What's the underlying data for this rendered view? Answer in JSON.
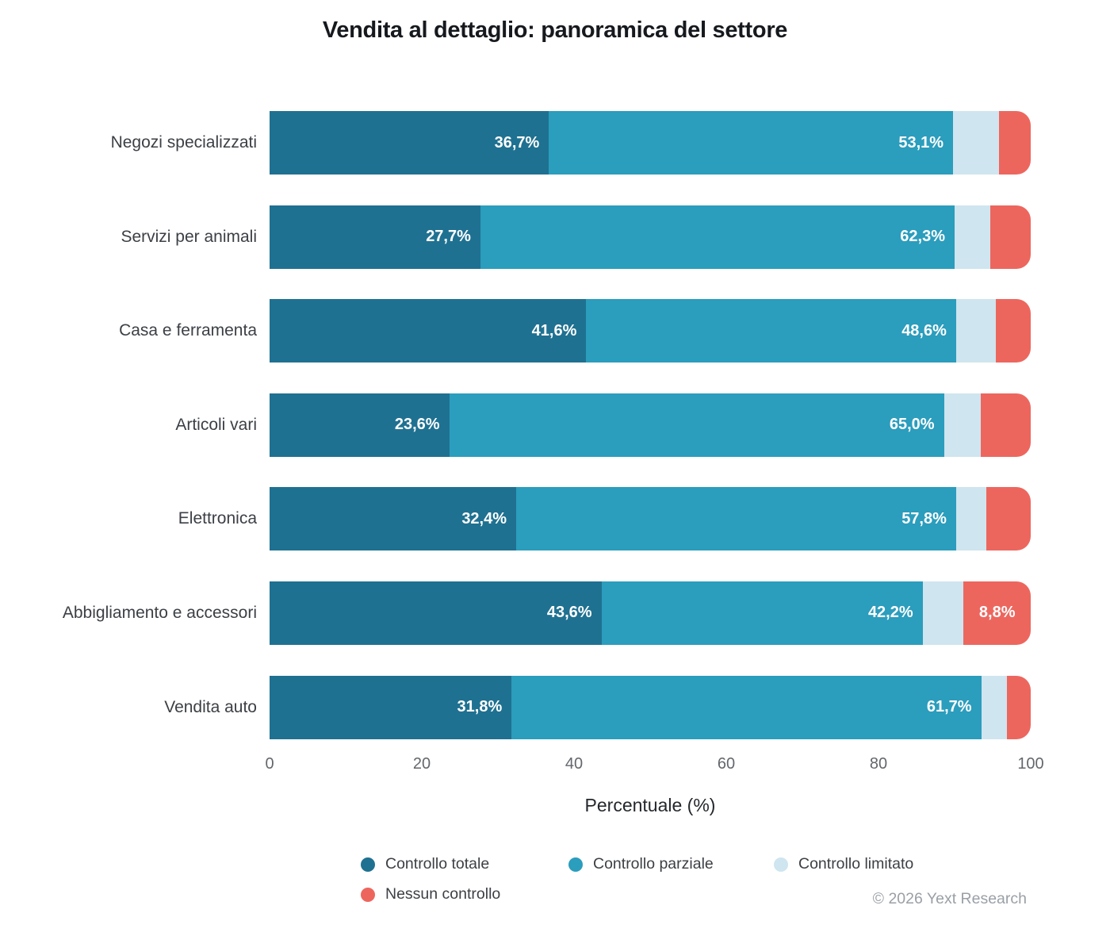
{
  "chart_data": {
    "type": "bar",
    "stacked": true,
    "orientation": "horizontal",
    "title": "Vendita al dettaglio: panoramica del settore",
    "xlabel": "Percentuale (%)",
    "xlim": [
      0,
      100
    ],
    "xticks": [
      "0",
      "20",
      "40",
      "60",
      "80",
      "100"
    ],
    "grid": false,
    "legend_position": "bottom",
    "categories": [
      "Negozi specializzati",
      "Servizi per animali",
      "Casa e ferramenta",
      "Articoli vari",
      "Elettronica",
      "Abbigliamento e accessori",
      "Vendita auto"
    ],
    "series": [
      {
        "name": "Controllo totale",
        "color": "#1f7191",
        "values": [
          36.7,
          27.7,
          41.6,
          23.6,
          32.4,
          43.6,
          31.8
        ],
        "labels": [
          "36,7%",
          "27,7%",
          "41,6%",
          "23,6%",
          "32,4%",
          "43,6%",
          "31,8%"
        ]
      },
      {
        "name": "Controllo parziale",
        "color": "#2b9dbd",
        "values": [
          53.1,
          62.3,
          48.6,
          65.0,
          57.8,
          42.2,
          61.7
        ],
        "labels": [
          "53,1%",
          "62,3%",
          "48,6%",
          "65,0%",
          "57,8%",
          "42,2%",
          "61,7%"
        ]
      },
      {
        "name": "Controllo limitato",
        "color": "#cfe5ef",
        "values": [
          6.0,
          4.7,
          5.2,
          4.8,
          4.0,
          5.4,
          3.4
        ],
        "labels": [
          "",
          "",
          "",
          "",
          "",
          "",
          ""
        ]
      },
      {
        "name": "Nessun controllo",
        "color": "#ed665e",
        "values": [
          4.2,
          5.3,
          4.6,
          6.6,
          5.8,
          8.8,
          3.1
        ],
        "labels": [
          "",
          "",
          "",
          "",
          "",
          "8,8%",
          ""
        ]
      }
    ],
    "footer": "© 2026 Yext Research"
  }
}
